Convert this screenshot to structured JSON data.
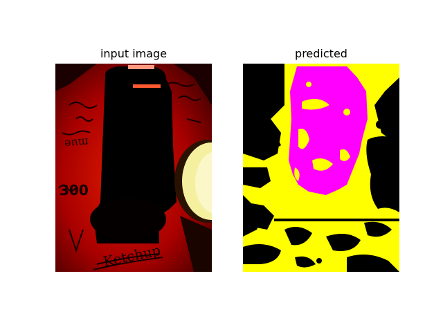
{
  "figure": {
    "panels": [
      {
        "title": "input image"
      },
      {
        "title": "predicted"
      }
    ]
  },
  "input_image": {
    "handwritten_text": [
      "Ketchup",
      "300",
      "mue"
    ],
    "colors": {
      "background": "#b30000",
      "dark": "#000000",
      "plate": "#f5f0a0"
    }
  },
  "prediction": {
    "classes": [
      {
        "color": "#000000"
      },
      {
        "color": "#ffff00"
      },
      {
        "color": "#ff00ff"
      }
    ]
  }
}
